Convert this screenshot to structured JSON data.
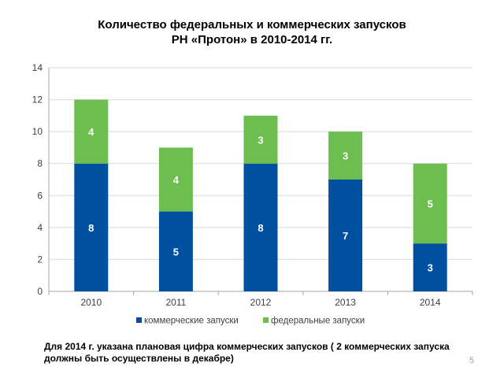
{
  "chart_data": {
    "type": "bar",
    "stacked": true,
    "title_lines": [
      "Количество федеральных и коммерческих запусков",
      "РН «Протон» в 2010-2014 гг."
    ],
    "categories": [
      "2010",
      "2011",
      "2012",
      "2013",
      "2014"
    ],
    "series": [
      {
        "name": "коммерческие запуски",
        "values": [
          8,
          5,
          8,
          7,
          3
        ],
        "color": "#0050A0"
      },
      {
        "name": "федеральные запуски",
        "values": [
          4,
          4,
          3,
          3,
          5
        ],
        "color": "#6CBF4E"
      }
    ],
    "ylim": [
      0,
      14
    ],
    "yticks": [
      0,
      2,
      4,
      6,
      8,
      10,
      12,
      14
    ],
    "grid": true,
    "legend_position": "bottom",
    "data_label_color": "#FFFFFF"
  },
  "footnote": "Для 2014 г. указана плановая цифра коммерческих запусков ( 2 коммерческих запуска должны быть осуществлены в декабре)",
  "page_number": "5"
}
